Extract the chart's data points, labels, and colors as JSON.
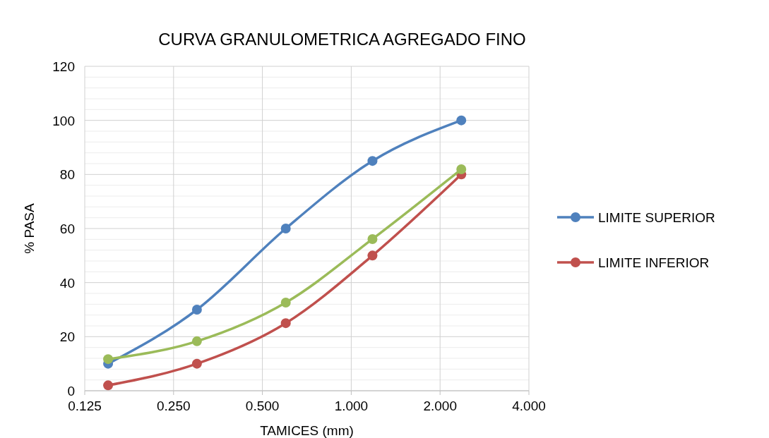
{
  "chart_data": {
    "type": "line",
    "title": "CURVA GRANULOMETRICA AGREGADO FINO",
    "xlabel": "TAMICES (mm)",
    "ylabel": "% PASA",
    "x": [
      0.15,
      0.3,
      0.6,
      1.18,
      2.36
    ],
    "series": [
      {
        "name": "LIMITE SUPERIOR",
        "color": "#4f81bd",
        "values": [
          10,
          30,
          60,
          85,
          100
        ]
      },
      {
        "name": "LIMITE INFERIOR",
        "color": "#c0504d",
        "values": [
          2,
          10,
          25,
          50,
          80
        ]
      },
      {
        "color": "#9bbb59",
        "values": [
          11.7,
          18.3,
          32.6,
          56.1,
          81.9
        ]
      }
    ],
    "log": "x",
    "xlim": [
      0.125,
      4
    ],
    "xticks": [
      {
        "value": 0.125,
        "label": "0.125"
      },
      {
        "value": 0.25,
        "label": "0.250"
      },
      {
        "value": 0.5,
        "label": "0.500"
      },
      {
        "value": 1,
        "label": "1.000"
      },
      {
        "value": 2,
        "label": "2.000"
      },
      {
        "value": 4,
        "label": "4.000"
      }
    ],
    "ylim": [
      0,
      120
    ],
    "yticks": [
      0,
      20,
      40,
      60,
      80,
      100,
      120
    ],
    "grid": true,
    "legend": "right",
    "marker": "circle",
    "line_style": "solid"
  }
}
